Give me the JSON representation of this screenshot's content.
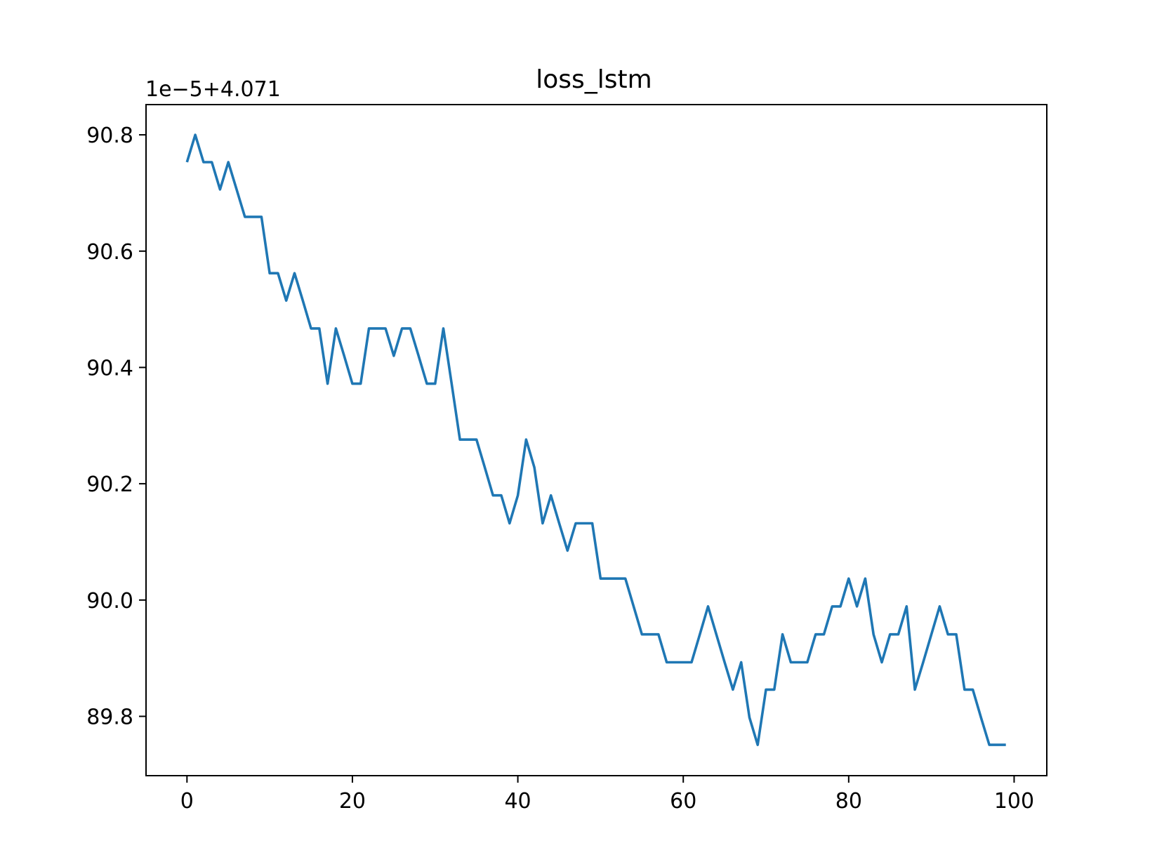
{
  "chart_data": {
    "type": "line",
    "title": "loss_lstm",
    "xlabel": "",
    "ylabel": "",
    "axis_offset_label": "1e−5+4.071",
    "xlim": [
      -4.95,
      103.95
    ],
    "ylim": [
      89.698,
      90.852
    ],
    "xticks": [
      0,
      20,
      40,
      60,
      80,
      100
    ],
    "xtick_labels": [
      "0",
      "20",
      "40",
      "60",
      "80",
      "100"
    ],
    "yticks": [
      89.8,
      90.0,
      90.2,
      90.4,
      90.6,
      90.8
    ],
    "ytick_labels": [
      "89.8",
      "90.0",
      "90.2",
      "90.4",
      "90.6",
      "90.8"
    ],
    "grid": false,
    "line_color": "#1f77b4",
    "series": [
      {
        "x": [
          0,
          1,
          2,
          3,
          4,
          5,
          6,
          7,
          8,
          9,
          10,
          11,
          12,
          13,
          14,
          15,
          16,
          17,
          18,
          19,
          20,
          21,
          22,
          23,
          24,
          25,
          26,
          27,
          28,
          29,
          30,
          31,
          32,
          33,
          34,
          35,
          36,
          37,
          38,
          39,
          40,
          41,
          42,
          43,
          44,
          45,
          46,
          47,
          48,
          49,
          50,
          51,
          52,
          53,
          54,
          55,
          56,
          57,
          58,
          59,
          60,
          61,
          62,
          63,
          64,
          65,
          66,
          67,
          68,
          69,
          70,
          71,
          72,
          73,
          74,
          75,
          76,
          77,
          78,
          79,
          80,
          81,
          82,
          83,
          84,
          85,
          86,
          87,
          88,
          89,
          90,
          91,
          92,
          93,
          94,
          95,
          96,
          97,
          98,
          99
        ],
        "y": [
          90.753,
          90.8,
          90.753,
          90.753,
          90.706,
          90.753,
          90.706,
          90.659,
          90.659,
          90.659,
          90.562,
          90.562,
          90.515,
          90.562,
          90.515,
          90.467,
          90.467,
          90.372,
          90.467,
          90.42,
          90.372,
          90.372,
          90.467,
          90.467,
          90.467,
          90.42,
          90.467,
          90.467,
          90.42,
          90.372,
          90.372,
          90.467,
          90.372,
          90.276,
          90.276,
          90.276,
          90.228,
          90.18,
          90.18,
          90.132,
          90.18,
          90.276,
          90.228,
          90.132,
          90.18,
          90.132,
          90.085,
          90.132,
          90.132,
          90.132,
          90.037,
          90.037,
          90.037,
          90.037,
          89.989,
          89.941,
          89.941,
          89.941,
          89.893,
          89.893,
          89.893,
          89.893,
          89.941,
          89.989,
          89.941,
          89.893,
          89.846,
          89.893,
          89.798,
          89.751,
          89.846,
          89.846,
          89.941,
          89.893,
          89.893,
          89.893,
          89.941,
          89.941,
          89.989,
          89.989,
          90.037,
          89.989,
          90.037,
          89.941,
          89.893,
          89.941,
          89.941,
          89.989,
          89.846,
          89.893,
          89.941,
          89.989,
          89.941,
          89.941,
          89.846,
          89.846,
          89.798,
          89.751,
          89.751,
          89.751
        ]
      }
    ]
  }
}
